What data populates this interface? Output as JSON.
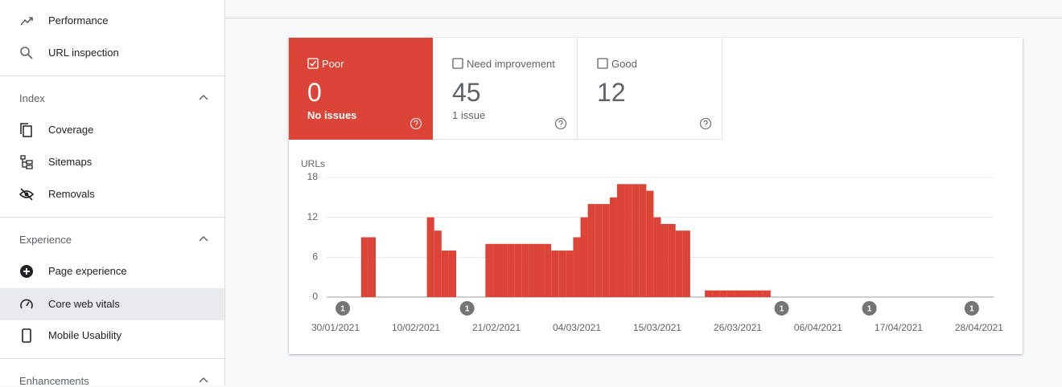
{
  "nav": {
    "top": [
      "Performance",
      "URL inspection"
    ],
    "sections": [
      {
        "title": "Index",
        "items": [
          "Coverage",
          "Sitemaps",
          "Removals"
        ]
      },
      {
        "title": "Experience",
        "items": [
          "Page experience",
          "Core web vitals",
          "Mobile Usability"
        ]
      },
      {
        "title": "Enhancements"
      }
    ]
  },
  "summary": {
    "tabs": [
      {
        "label": "Poor",
        "count": 0,
        "note": "No issues",
        "checked": true
      },
      {
        "label": "Need improvement",
        "count": 45,
        "note": "1 issue",
        "checked": false
      },
      {
        "label": "Good",
        "count": 12,
        "checked": false
      }
    ]
  },
  "chart_data": {
    "type": "bar",
    "y_label": "URLs",
    "color": "#db4437",
    "categories": [
      "30/01/2021",
      null,
      null,
      null,
      null,
      null,
      null,
      null,
      null,
      null,
      null,
      "10/02/2021",
      null,
      null,
      null,
      null,
      null,
      null,
      null,
      null,
      null,
      null,
      "21/02/2021",
      null,
      null,
      null,
      null,
      null,
      null,
      null,
      null,
      null,
      null,
      "04/03/2021",
      null,
      null,
      null,
      null,
      null,
      null,
      null,
      null,
      null,
      null,
      "15/03/2021",
      null,
      null,
      null,
      null,
      null,
      null,
      null,
      null,
      null,
      null,
      "26/03/2021",
      null,
      null,
      null,
      null,
      null,
      null,
      null,
      null,
      null,
      null,
      "06/04/2021",
      null,
      null,
      null,
      null,
      null,
      null,
      null,
      null,
      null,
      null,
      "17/04/2021",
      null,
      null,
      null,
      null,
      null,
      null,
      null,
      null,
      null,
      null,
      "28/04/2021"
    ],
    "values": [
      0,
      0,
      0,
      0,
      9,
      9,
      0,
      0,
      0,
      0,
      0,
      0,
      0,
      12,
      10,
      7,
      7,
      0,
      0,
      0,
      0,
      8,
      8,
      8,
      8,
      8,
      8,
      8,
      8,
      8,
      7,
      7,
      7,
      9,
      12,
      14,
      14,
      14,
      15,
      17,
      17,
      17,
      17,
      16,
      12,
      11,
      11,
      10,
      10,
      0,
      0,
      1,
      1,
      1,
      1,
      1,
      1,
      1,
      1,
      1,
      0,
      0,
      0,
      0,
      0,
      0,
      0,
      0,
      0,
      0,
      0,
      0,
      0,
      0,
      0,
      0,
      0,
      0,
      0,
      0,
      0,
      0,
      0,
      0,
      0,
      0,
      0,
      0,
      0
    ],
    "annotations": [
      null,
      "1",
      null,
      null,
      null,
      null,
      null,
      null,
      null,
      null,
      null,
      null,
      null,
      null,
      null,
      null,
      null,
      null,
      "1",
      null,
      null,
      null,
      null,
      null,
      null,
      null,
      null,
      null,
      null,
      null,
      null,
      null,
      null,
      null,
      null,
      null,
      null,
      null,
      null,
      null,
      null,
      null,
      null,
      null,
      null,
      null,
      null,
      null,
      null,
      null,
      null,
      null,
      null,
      null,
      null,
      null,
      null,
      null,
      null,
      null,
      null,
      "1",
      null,
      null,
      null,
      null,
      null,
      null,
      null,
      null,
      null,
      null,
      null,
      "1",
      null,
      null,
      null,
      null,
      null,
      null,
      null,
      null,
      null,
      null,
      null,
      null,
      null,
      "1",
      null
    ],
    "ylim": [
      0,
      18
    ],
    "yticks": [
      0,
      6,
      12,
      18
    ],
    "grid": true
  }
}
